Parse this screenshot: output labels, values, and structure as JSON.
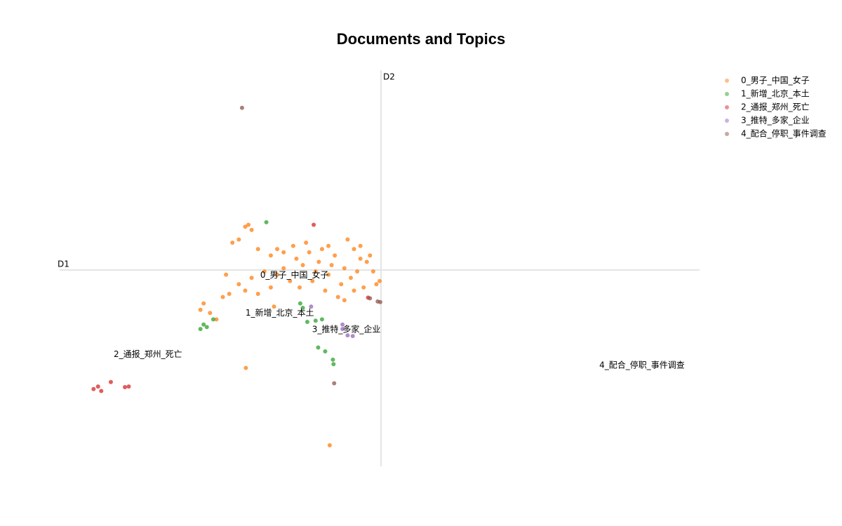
{
  "chart_data": {
    "type": "scatter",
    "title": "Documents and Topics",
    "x_label": "D1",
    "y_label": "D2",
    "xlim": [
      -5,
      5
    ],
    "ylim": [
      -3.1,
      3.1
    ],
    "series": [
      {
        "name": "0_男子_中国_女子",
        "color": "#ff7f0e",
        "x": [
          -2.1,
          -2.0,
          -2.3,
          -2.2,
          -1.9,
          -1.7,
          -1.5,
          -1.3,
          -1.1,
          -0.9,
          -0.8,
          -0.7,
          -0.5,
          -0.4,
          -0.3,
          -0.2,
          -0.1,
          -0.05,
          0.0,
          -0.25,
          -0.4,
          -0.6,
          -0.8,
          -1.0,
          -1.2,
          -1.4,
          -1.6,
          -1.8,
          -2.0,
          -2.2,
          -2.4,
          -2.35,
          -2.1,
          -1.9,
          -1.7,
          -1.5,
          -1.25,
          -1.05,
          -0.85,
          -0.65,
          -0.45,
          -0.95,
          -0.75,
          -0.55,
          -0.35,
          -1.6,
          -1.35,
          -1.15,
          -0.3,
          -0.15,
          -2.45,
          -2.75,
          -2.8,
          -2.65,
          -2.55,
          -2.09,
          -0.78,
          -1.65,
          -2.05,
          -0.55
        ],
        "values": [
          0.65,
          0.6,
          0.4,
          0.45,
          0.3,
          0.2,
          0.25,
          0.15,
          0.25,
          0.3,
          0.35,
          0.2,
          0.45,
          0.3,
          0.15,
          0.1,
          -0.05,
          -0.25,
          -0.2,
          -0.3,
          -0.35,
          -0.25,
          -0.1,
          -0.05,
          0.05,
          -0.2,
          -0.1,
          -0.05,
          -0.15,
          -0.25,
          -0.1,
          -0.4,
          -0.35,
          -0.4,
          -0.3,
          0.0,
          -0.3,
          -0.2,
          -0.35,
          -0.45,
          -0.15,
          0.1,
          0.05,
          0.0,
          -0.05,
          0.3,
          0.35,
          0.4,
          0.35,
          0.2,
          -0.45,
          -0.55,
          -0.65,
          -0.7,
          -0.8,
          -1.56,
          -2.77,
          -0.6,
          0.68,
          -0.5
        ]
      },
      {
        "name": "1_新增_北京_本土",
        "color": "#2ca02c",
        "x": [
          -2.8,
          -2.75,
          -2.7,
          -2.6,
          -1.77,
          -1.24,
          -1.13,
          -1.0,
          -0.9,
          -0.96,
          -0.85,
          -0.73,
          -0.72,
          -1.2
        ],
        "values": [
          -0.95,
          -0.88,
          -0.92,
          -0.8,
          0.72,
          -0.55,
          -0.84,
          -0.82,
          -0.8,
          -1.24,
          -1.3,
          -1.43,
          -1.5,
          -0.62
        ]
      },
      {
        "name": "2_通报_郑州_死亡",
        "color": "#d62728",
        "x": [
          -4.47,
          -4.4,
          -4.35,
          -4.2,
          -3.98,
          -3.92,
          -1.03,
          -0.18
        ],
        "values": [
          -1.89,
          -1.85,
          -1.92,
          -1.78,
          -1.86,
          -1.85,
          0.68,
          -0.46
        ]
      },
      {
        "name": "3_推特_多家_企业",
        "color": "#9467bd",
        "x": [
          -0.42,
          -0.5,
          -0.58,
          -0.58,
          -1.07
        ],
        "values": [
          -1.06,
          -1.05,
          -0.88,
          -0.95,
          -0.6
        ]
      },
      {
        "name": "4_配合_停职_事件调查",
        "color": "#8c564b",
        "x": [
          -2.15,
          -0.71,
          -0.03,
          0.01,
          -0.15
        ],
        "values": [
          2.51,
          -1.8,
          -0.52,
          -0.53,
          -0.47
        ]
      }
    ],
    "annotations": [
      {
        "text": "0_男子_中国_女子",
        "x": -1.33,
        "y": -0.11
      },
      {
        "text": "1_新增_北京_本土",
        "x": -1.56,
        "y": -0.7
      },
      {
        "text": "2_通报_郑州_死亡",
        "x": -3.62,
        "y": -1.35
      },
      {
        "text": "3_推特_多家_企业",
        "x": -0.52,
        "y": -0.96
      },
      {
        "text": "4_配合_停职_事件调查",
        "x": 4.1,
        "y": -1.52
      }
    ]
  }
}
